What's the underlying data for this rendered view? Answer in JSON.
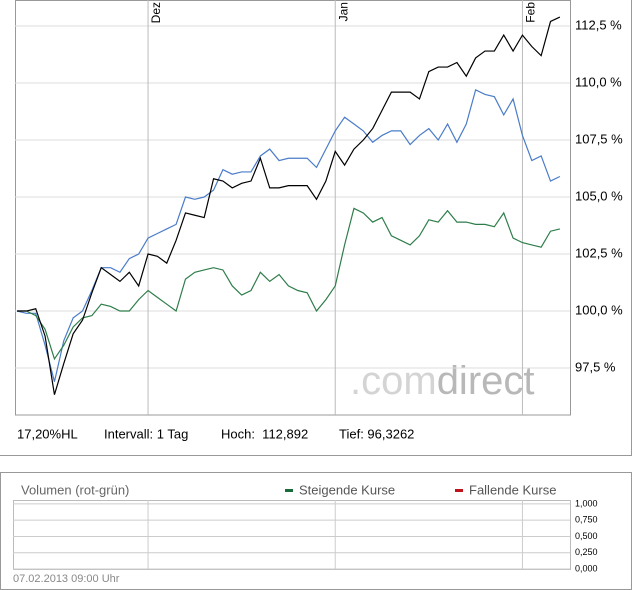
{
  "chart_data": [
    {
      "type": "line",
      "categories": [
        null,
        null,
        null,
        null,
        null,
        null,
        null,
        null,
        null,
        null,
        null,
        null,
        null,
        null,
        "Dez",
        null,
        null,
        null,
        null,
        null,
        null,
        null,
        null,
        null,
        null,
        null,
        null,
        null,
        null,
        null,
        null,
        null,
        null,
        null,
        "Jan",
        null,
        null,
        null,
        null,
        null,
        null,
        null,
        null,
        null,
        null,
        null,
        null,
        null,
        null,
        null,
        null,
        null,
        null,
        null,
        "Feb",
        null,
        null,
        null,
        null
      ],
      "series": [
        {
          "color": "#4a7cc9",
          "values": [
            100,
            99.9,
            99.9,
            98.5,
            96.9,
            98.7,
            99.7,
            100,
            100.9,
            101.9,
            101.9,
            101.7,
            102.3,
            102.5,
            103.2,
            103.4,
            103.6,
            103.8,
            105,
            104.9,
            105,
            105.3,
            106.2,
            106,
            106.1,
            106.1,
            106.8,
            107.1,
            106.6,
            106.7,
            106.7,
            106.7,
            106.3,
            107.1,
            107.9,
            108.5,
            108.2,
            107.9,
            107.4,
            107.7,
            107.9,
            107.9,
            107.3,
            107.7,
            108,
            107.5,
            108.2,
            107.4,
            108.2,
            109.7,
            109.5,
            109.4,
            108.6,
            109.3,
            107.7,
            106.6,
            106.8,
            105.7,
            105.9
          ]
        },
        {
          "color": "#2e7d4a",
          "values": [
            100,
            100,
            99.8,
            99.2,
            97.9,
            98.5,
            99.3,
            99.7,
            99.8,
            100.3,
            100.2,
            100,
            100,
            100.5,
            100.9,
            100.6,
            100.3,
            100,
            101.4,
            101.7,
            101.8,
            101.9,
            101.8,
            101.1,
            100.7,
            100.9,
            101.7,
            101.3,
            101.6,
            101.1,
            100.9,
            100.8,
            100,
            100.5,
            101.1,
            102.9,
            104.5,
            104.3,
            103.9,
            104.1,
            103.3,
            103.1,
            102.9,
            103.3,
            104,
            103.9,
            104.4,
            103.9,
            103.9,
            103.8,
            103.8,
            103.7,
            104.3,
            103.2,
            103,
            102.9,
            102.8,
            103.5,
            103.6
          ]
        },
        {
          "color": "#000000",
          "values": [
            100,
            100,
            100.1,
            98.9,
            96.33,
            97.7,
            99,
            99.6,
            100.8,
            101.9,
            101.6,
            101.3,
            101.7,
            101.1,
            102.5,
            102.4,
            102.1,
            103.1,
            104.3,
            104.2,
            104.1,
            105.8,
            105.7,
            105.4,
            105.6,
            105.7,
            106.7,
            105.4,
            105.4,
            105.5,
            105.5,
            105.5,
            104.9,
            105.7,
            107,
            106.4,
            107.1,
            107.5,
            108,
            108.8,
            109.6,
            109.6,
            109.6,
            109.3,
            110.5,
            110.7,
            110.7,
            110.9,
            110.3,
            111.1,
            111.4,
            111.4,
            112.1,
            111.4,
            112.1,
            111.6,
            111.2,
            112.7,
            112.89
          ]
        }
      ],
      "ylim": [
        95.44,
        113.64
      ],
      "yticks": [
        {
          "value": 97.5,
          "label": "97,5 %"
        },
        {
          "value": 100,
          "label": "100,0 %"
        },
        {
          "value": 102.5,
          "label": "102,5 %"
        },
        {
          "value": 105,
          "label": "105,0 %"
        },
        {
          "value": 107.5,
          "label": "107,5 %"
        },
        {
          "value": 110,
          "label": "110,0 %"
        },
        {
          "value": 112.5,
          "label": "112,5 %"
        }
      ],
      "grid": true
    },
    {
      "type": "bar",
      "title": "Volumen (rot-grün)",
      "legend": [
        {
          "name": "Steigende Kurse",
          "color": "#1a6b3a"
        },
        {
          "name": "Fallende Kurse",
          "color": "#c0141c"
        }
      ],
      "ylim": [
        0,
        1.06
      ],
      "yticks": [
        {
          "value": 0,
          "label": "0,000"
        },
        {
          "value": 0.25,
          "label": "0,250"
        },
        {
          "value": 0.5,
          "label": "0,500"
        },
        {
          "value": 0.75,
          "label": "0,750"
        },
        {
          "value": 1,
          "label": "1,000"
        }
      ],
      "grid": true
    }
  ],
  "info": {
    "hl": "17,20%HL",
    "interval": "Intervall: 1 Tag",
    "high": "Hoch:  112,892",
    "low": "Tief: 96,3262"
  },
  "watermark": {
    "part1": ".com",
    "part2": "direct"
  },
  "timestamp": "07.02.2013 09:00 Uhr"
}
